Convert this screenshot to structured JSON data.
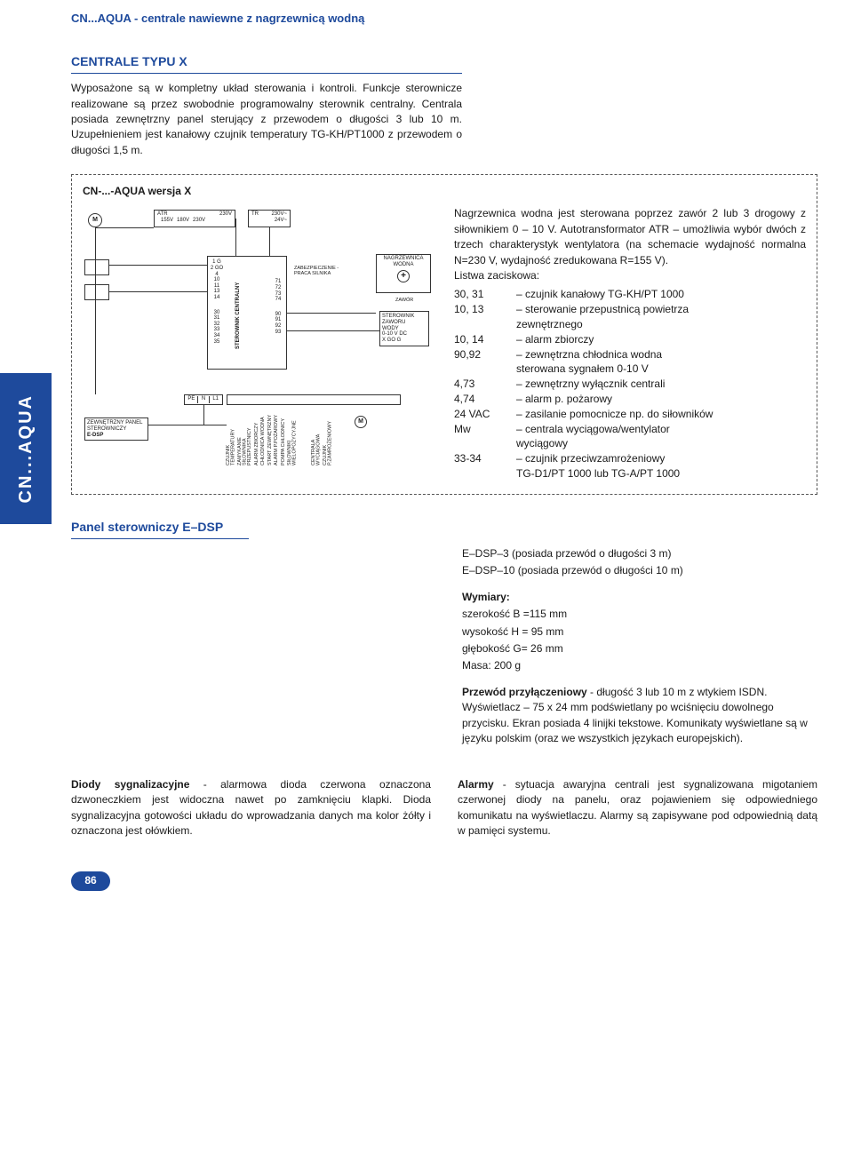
{
  "colors": {
    "brand_blue": "#1e4a9c",
    "text": "#1a1a1a",
    "background": "#ffffff",
    "dash_border": "#555555"
  },
  "typography": {
    "base_font": "Arial, Helvetica, sans-serif",
    "base_size_pt": 9,
    "heading_size_pt": 11,
    "heading_weight": "bold"
  },
  "header": {
    "title": "CN...AQUA - centrale nawiewne z nagrzewnicą wodną"
  },
  "side_tab": "CN...AQUA",
  "section1": {
    "heading": "CENTRALE TYPU X",
    "intro": "Wyposażone są w kompletny układ sterowania i kontroli. Funkcje sterownicze realizowane są przez swobodnie programowalny sterownik centralny. Centrala posiada zewnętrzny panel sterujący z przewodem o długości 3 lub 10 m. Uzupełnieniem jest kanałowy czujnik temperatury TG-KH/PT1000 z przewodem o długości 1,5 m."
  },
  "diagram": {
    "title": "CN-...-AQUA wersja X",
    "top_labels": {
      "m_left": "M",
      "atr": "ATR",
      "volts": [
        "155V",
        "180V",
        "230V"
      ],
      "atr_230": "230V",
      "tr": "TR",
      "tr_out": [
        "230V~",
        "24V~"
      ]
    },
    "center_box": {
      "label": "STEROWNIK CENTRALNY",
      "left_terms": [
        "1 G",
        "2 GO",
        "4",
        "10",
        "11",
        "13",
        "14",
        "30",
        "31",
        "32",
        "33",
        "34",
        "35"
      ],
      "right_terms": [
        "71",
        "72",
        "73",
        "74",
        "90",
        "91",
        "92",
        "93"
      ],
      "prot_label": "ZABEZPIECZENIE -PRACA SILNIKA"
    },
    "heater_box": {
      "l1": "NAGRZEWNICA",
      "l2": "WODNA",
      "valve": "ZAWÓR",
      "ctrl1": "STEROWNIK",
      "ctrl2": "ZAWORU",
      "ctrl3": "WODY",
      "ctrl4": "0-10 V DC",
      "ctrl5": "X  GO  G"
    },
    "ext_panel": {
      "l1": "ZEWNĘTRZNY PANEL",
      "l2": "STEROWNICZY",
      "l3": "E-DSP"
    },
    "pe_block": [
      "PE",
      "N",
      "L1"
    ],
    "bottom_m": "M",
    "bottom_vertical_labels": [
      "CZUJNIK TEMPERATURY",
      "ZAMYKANIE SIŁOWNIKA PRZEPUSTNICY",
      "ALARM ZBIORCZY",
      "CHŁODNICA WODNA",
      "START ZEWNĘTRZNY",
      "ALARM P.POŻAROWY",
      "POMPA CHŁODNICY",
      "SIŁOWNIKI WIELOPOZYCYJNE",
      "CENTRALA WYCIĄGOWA",
      "CZUJNIK P.ZAMROŻENIOWY"
    ],
    "desc": {
      "p1": "Nagrzewnica wodna jest sterowana poprzez zawór 2 lub 3 drogowy z siłownikiem 0 – 10 V. Autotransformator ATR – umożliwia wybór dwóch z trzech charakterystyk wentylatora (na schemacie wydajność normalna N=230 V, wydajność zredukowana R=155 V).",
      "listwa": "Listwa zaciskowa:",
      "terms": [
        {
          "k": "30, 31",
          "v": "– czujnik kanałowy TG-KH/PT 1000"
        },
        {
          "k": "10, 13",
          "v": "– sterowanie przepustnicą powietrza"
        },
        {
          "k": "",
          "v": "  zewnętrznego",
          "indent": true
        },
        {
          "k": "10, 14",
          "v": "– alarm zbiorczy"
        },
        {
          "k": "90,92",
          "v": "– zewnętrzna chłodnica wodna"
        },
        {
          "k": "",
          "v": "  sterowana sygnałem 0-10 V",
          "indent": true
        },
        {
          "k": "4,73",
          "v": "– zewnętrzny wyłącznik centrali"
        },
        {
          "k": "4,74",
          "v": "– alarm p. pożarowy"
        },
        {
          "k": "24 VAC",
          "v": "– zasilanie pomocnicze np. do siłowników"
        },
        {
          "k": "Mᴡ",
          "v": "– centrala wyciągowa/wentylator"
        },
        {
          "k": "",
          "v": "  wyciągowy",
          "indent": true
        },
        {
          "k": "33-34",
          "v": "– czujnik przeciwzamrożeniowy"
        },
        {
          "k": "",
          "v": "  TG-D1/PT 1000 lub TG-A/PT 1000",
          "indent": true
        }
      ]
    }
  },
  "section2": {
    "heading": "Panel sterowniczy E–DSP",
    "right": {
      "l1": "E–DSP–3 (posiada przewód o długości 3 m)",
      "l2": "E–DSP–10 (posiada przewód o długości 10 m)",
      "dim_h": "Wymiary:",
      "dim1": "szerokość B =115 mm",
      "dim2": "wysokość H = 95 mm",
      "dim3": "głębokość G= 26 mm",
      "dim4": "Masa: 200 g",
      "p3_b": "Przewód przyłączeniowy",
      "p3": " - długość 3 lub 10 m z wtykiem ISDN. Wyświetlacz – 75 x 24 mm podświetlany po wciśnięciu dowolnego przycisku. Ekran posiada 4 linijki tekstowe. Komunikaty wyświetlane są w języku polskim (oraz we wszystkich językach europejskich)."
    },
    "bottom": {
      "left_b": "Diody sygnalizacyjne",
      "left": " - alarmowa dioda czerwona oznaczona dzwoneczkiem jest widoczna nawet po zamknięciu klapki. Dioda sygnalizacyjna gotowości układu do wprowadzania danych ma kolor żółty i oznaczona jest ołówkiem.",
      "right_b": "Alarmy",
      "right": " - sytuacja awaryjna centrali jest sygnalizowana migotaniem czerwonej diody na panelu, oraz pojawieniem się odpowiedniego komunikatu na wyświetlaczu. Alarmy są zapisywane pod odpowiednią datą w pamięci systemu."
    }
  },
  "page_number": "86"
}
